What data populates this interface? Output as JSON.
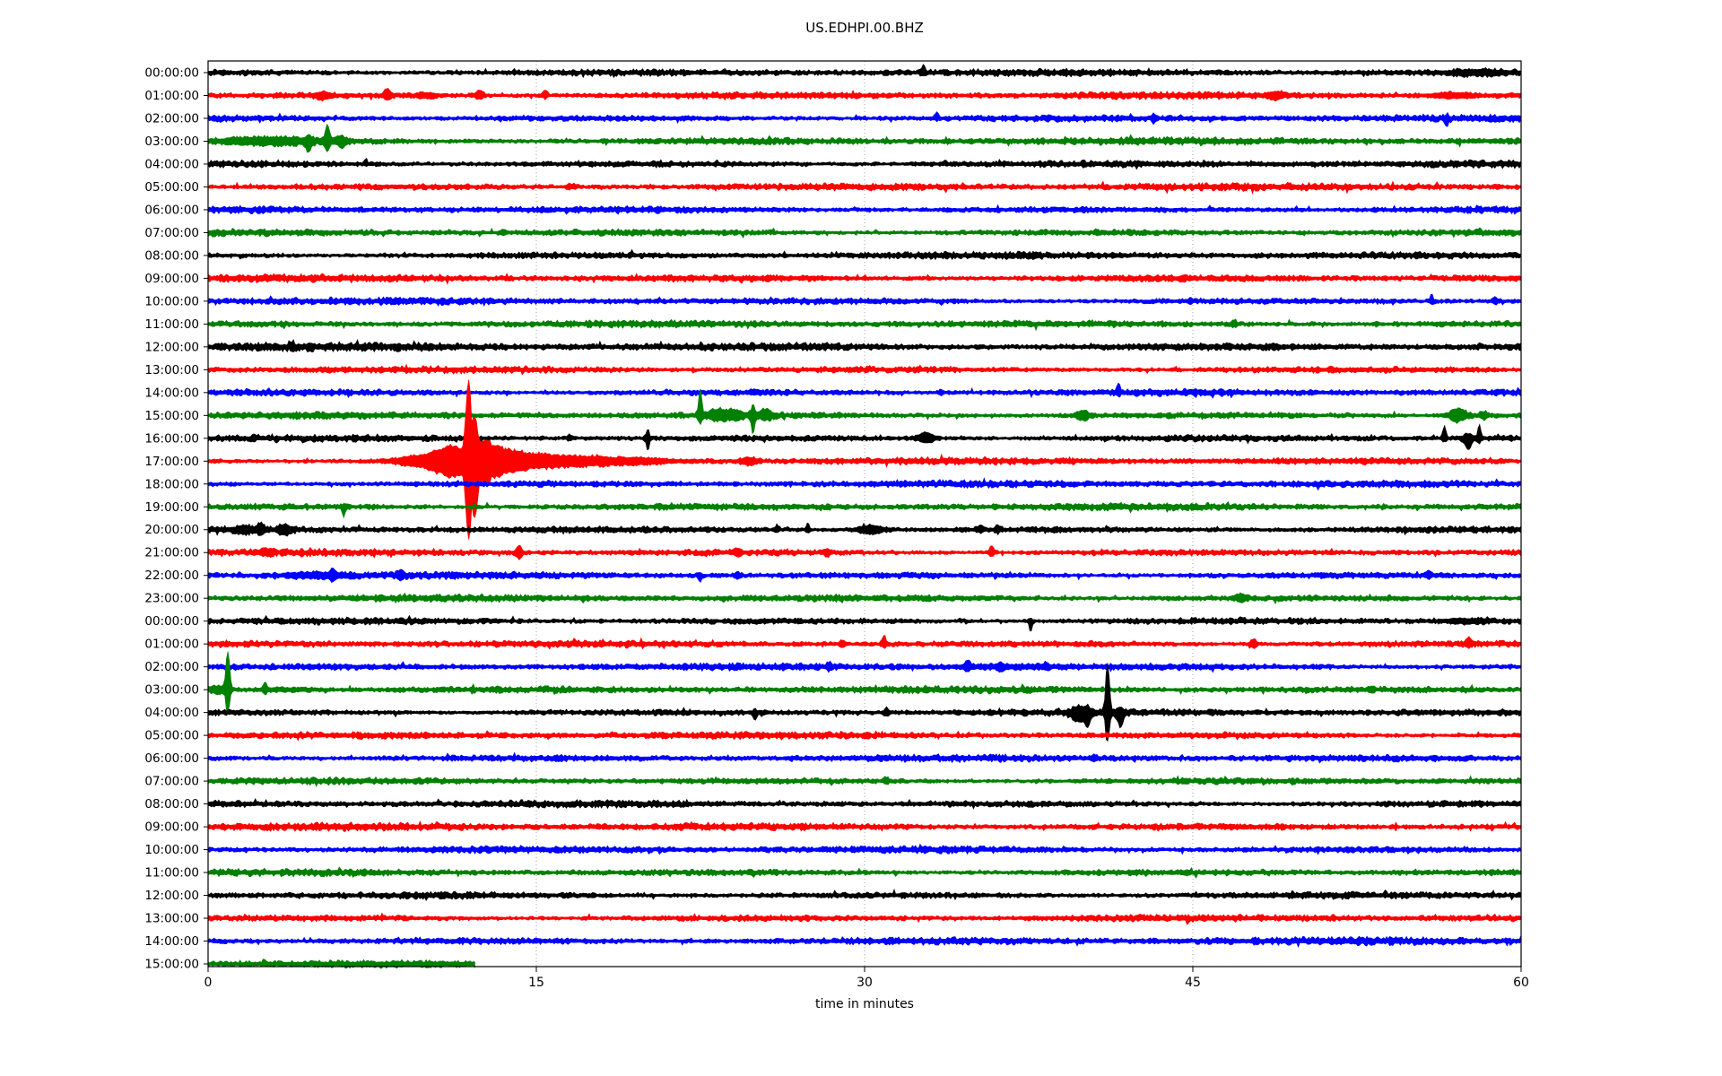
{
  "title": "US.EDHPI.00.BHZ",
  "chart_data": {
    "type": "line",
    "subtype": "helicorder-dayplot",
    "station_id": "US.EDHPI.00.BHZ",
    "xlabel": "time in minutes",
    "x_ticks": [
      0,
      15,
      30,
      45,
      60
    ],
    "x_range": [
      0,
      60
    ],
    "minutes_per_line": 60,
    "grid_minutes": [
      15,
      30,
      45
    ],
    "grid_style": "dotted",
    "legend": "none",
    "palette": {
      "black": "#000000",
      "red": "#ff0000",
      "blue": "#0000ff",
      "green": "#008000"
    },
    "color_cycle": [
      "black",
      "red",
      "blue",
      "green"
    ],
    "rows": [
      {
        "label": "00:00:00",
        "color": "black",
        "events": [
          [
            32.7,
            0.07,
            6,
            2
          ],
          [
            58,
            1.0,
            1.5,
            1.5
          ]
        ]
      },
      {
        "label": "01:00:00",
        "color": "red",
        "events": [
          [
            5.3,
            0.3,
            2.5,
            2.5
          ],
          [
            8.2,
            0.15,
            5,
            3
          ],
          [
            10,
            0.4,
            2,
            2
          ],
          [
            12.4,
            0.2,
            4,
            2.5
          ],
          [
            15.4,
            0.1,
            5,
            2
          ],
          [
            48.8,
            0.25,
            3,
            3
          ],
          [
            56.8,
            0.8,
            2,
            2
          ]
        ]
      },
      {
        "label": "02:00:00",
        "color": "blue",
        "events": [
          [
            33.3,
            0.07,
            6,
            1
          ],
          [
            43.2,
            0.07,
            3,
            3
          ],
          [
            56.6,
            0.07,
            2,
            7
          ]
        ]
      },
      {
        "label": "03:00:00",
        "color": "green",
        "amp": 1.05,
        "events": [
          [
            2.8,
            2.0,
            2.5,
            2.5
          ],
          [
            4.6,
            0.12,
            4,
            8
          ],
          [
            5.45,
            0.1,
            15,
            8
          ],
          [
            6.1,
            0.15,
            4,
            5
          ]
        ]
      },
      {
        "label": "04:00:00",
        "color": "black",
        "events": [
          [
            7.2,
            0.06,
            4,
            1
          ]
        ]
      },
      {
        "label": "05:00:00",
        "color": "red",
        "amp": 1.05,
        "events": [
          [
            16.6,
            0.2,
            2,
            1
          ]
        ]
      },
      {
        "label": "06:00:00",
        "color": "blue",
        "events": []
      },
      {
        "label": "07:00:00",
        "color": "green",
        "events": [
          [
            13.5,
            0.1,
            2,
            2
          ]
        ]
      },
      {
        "label": "08:00:00",
        "color": "black",
        "events": []
      },
      {
        "label": "09:00:00",
        "color": "red",
        "amp": 1.1,
        "events": []
      },
      {
        "label": "10:00:00",
        "color": "blue",
        "events": [
          [
            44.9,
            0.07,
            2.5,
            2
          ],
          [
            55.9,
            0.07,
            5,
            2
          ],
          [
            58.8,
            0.1,
            3,
            2
          ]
        ]
      },
      {
        "label": "11:00:00",
        "color": "green",
        "events": [
          [
            46.9,
            0.12,
            3,
            2
          ]
        ]
      },
      {
        "label": "12:00:00",
        "color": "black",
        "amp": 1.2,
        "events": []
      },
      {
        "label": "13:00:00",
        "color": "red",
        "events": []
      },
      {
        "label": "14:00:00",
        "color": "blue",
        "events": [
          [
            25,
            0.2,
            2,
            1
          ],
          [
            33.5,
            0.1,
            2,
            2
          ],
          [
            41.6,
            0.07,
            9,
            2
          ]
        ]
      },
      {
        "label": "15:00:00",
        "color": "green",
        "events": [
          [
            22.5,
            0.07,
            26,
            7
          ],
          [
            23.3,
            0.4,
            5,
            4
          ],
          [
            24.1,
            0.3,
            4,
            3
          ],
          [
            24.9,
            0.09,
            9,
            16
          ],
          [
            25.5,
            0.25,
            5,
            3
          ],
          [
            40,
            0.25,
            4,
            4
          ],
          [
            57.1,
            0.35,
            6,
            5
          ],
          [
            58.3,
            0.15,
            3,
            3
          ]
        ]
      },
      {
        "label": "16:00:00",
        "color": "black",
        "events": [
          [
            16.5,
            0.1,
            3,
            1
          ],
          [
            20.1,
            0.07,
            8,
            11
          ],
          [
            32.8,
            0.3,
            5,
            4
          ],
          [
            56.5,
            0.07,
            11,
            2
          ],
          [
            57.6,
            0.15,
            4,
            11
          ],
          [
            58.1,
            0.07,
            13,
            3
          ]
        ]
      },
      {
        "label": "17:00:00",
        "color": "red",
        "events": [
          [
            9.5,
            0.8,
            4,
            4
          ],
          [
            10.6,
            0.5,
            8,
            8
          ],
          [
            11.3,
            0.4,
            12,
            12
          ],
          [
            11.9,
            0.12,
            84,
            80
          ],
          [
            12.2,
            0.12,
            35,
            50
          ],
          [
            12.6,
            0.3,
            15,
            16
          ],
          [
            13.1,
            0.4,
            10,
            10
          ],
          [
            13.8,
            0.6,
            7,
            7
          ],
          [
            15,
            0.9,
            5,
            5
          ],
          [
            17,
            1.2,
            3,
            3
          ],
          [
            19.5,
            1.5,
            2,
            2
          ],
          [
            24.7,
            0.3,
            3,
            3
          ]
        ]
      },
      {
        "label": "18:00:00",
        "color": "blue",
        "events": []
      },
      {
        "label": "19:00:00",
        "color": "green",
        "events": [
          [
            6.2,
            0.06,
            2,
            10
          ]
        ]
      },
      {
        "label": "20:00:00",
        "color": "black",
        "events": [
          [
            1.6,
            0.3,
            3,
            3
          ],
          [
            2.4,
            0.15,
            5,
            4
          ],
          [
            3.5,
            0.25,
            4,
            4
          ],
          [
            26,
            0.07,
            4,
            2
          ],
          [
            27.4,
            0.07,
            6,
            2
          ],
          [
            30.3,
            0.5,
            3.5,
            3.5
          ],
          [
            35.3,
            0.12,
            3,
            2
          ],
          [
            36.1,
            0.1,
            3,
            2
          ]
        ]
      },
      {
        "label": "21:00:00",
        "color": "red",
        "events": [
          [
            2.6,
            0.2,
            3,
            2
          ],
          [
            14.2,
            0.12,
            6,
            5
          ],
          [
            24.2,
            0.15,
            3,
            3
          ],
          [
            28.3,
            0.12,
            3,
            3
          ],
          [
            35.8,
            0.1,
            6,
            3
          ]
        ]
      },
      {
        "label": "22:00:00",
        "color": "blue",
        "events": [
          [
            5,
            1.2,
            1.8,
            1.8
          ],
          [
            5.7,
            0.1,
            5,
            4
          ],
          [
            8.8,
            0.15,
            4,
            3
          ],
          [
            22.5,
            0.07,
            2,
            5
          ],
          [
            24.2,
            0.1,
            2,
            2
          ],
          [
            55.8,
            0.1,
            4,
            2
          ]
        ]
      },
      {
        "label": "23:00:00",
        "color": "green",
        "events": [
          [
            47.2,
            0.2,
            3,
            3
          ]
        ]
      },
      {
        "label": "00:00:00",
        "color": "black",
        "events": [
          [
            37.6,
            0.06,
            2,
            9
          ],
          [
            57.5,
            0.8,
            1.5,
            1.5
          ]
        ]
      },
      {
        "label": "01:00:00",
        "color": "red",
        "events": [
          [
            29,
            0.12,
            3,
            3
          ],
          [
            30.9,
            0.08,
            8,
            3
          ],
          [
            47.8,
            0.1,
            5,
            4
          ],
          [
            57.6,
            0.1,
            6,
            2
          ]
        ]
      },
      {
        "label": "02:00:00",
        "color": "blue",
        "events": [
          [
            28.4,
            0.1,
            3,
            2
          ],
          [
            34.7,
            0.1,
            5,
            3
          ],
          [
            36.3,
            1.8,
            1.2,
            1.2
          ],
          [
            36.2,
            0.1,
            3,
            3
          ],
          [
            38.3,
            0.12,
            3,
            2
          ]
        ]
      },
      {
        "label": "03:00:00",
        "color": "green",
        "events": [
          [
            0.4,
            0.3,
            3,
            3
          ],
          [
            0.9,
            0.09,
            41,
            23
          ],
          [
            2.6,
            0.08,
            6,
            3
          ],
          [
            3.5,
            1.2,
            1.2,
            1.2
          ]
        ]
      },
      {
        "label": "04:00:00",
        "color": "black",
        "events": [
          [
            25,
            0.08,
            2,
            6
          ],
          [
            31,
            0.1,
            4,
            3
          ],
          [
            39.8,
            0.3,
            5,
            8
          ],
          [
            40.2,
            0.1,
            4,
            12
          ],
          [
            41.1,
            0.09,
            52,
            30
          ],
          [
            41.7,
            0.12,
            4,
            14
          ]
        ]
      },
      {
        "label": "05:00:00",
        "color": "red",
        "events": []
      },
      {
        "label": "06:00:00",
        "color": "blue",
        "events": [
          [
            40.5,
            0.15,
            2,
            2
          ]
        ]
      },
      {
        "label": "07:00:00",
        "color": "green",
        "events": [
          [
            31,
            0.1,
            3,
            2
          ]
        ]
      },
      {
        "label": "08:00:00",
        "color": "black",
        "events": []
      },
      {
        "label": "09:00:00",
        "color": "red",
        "amp": 1.1,
        "events": []
      },
      {
        "label": "10:00:00",
        "color": "blue",
        "events": []
      },
      {
        "label": "11:00:00",
        "color": "green",
        "events": []
      },
      {
        "label": "12:00:00",
        "color": "black",
        "events": []
      },
      {
        "label": "13:00:00",
        "color": "red",
        "events": []
      },
      {
        "label": "14:00:00",
        "color": "blue",
        "amp": 1.1,
        "events": []
      },
      {
        "label": "15:00:00",
        "color": "green",
        "duration_minutes": 12.2,
        "events": []
      }
    ]
  }
}
